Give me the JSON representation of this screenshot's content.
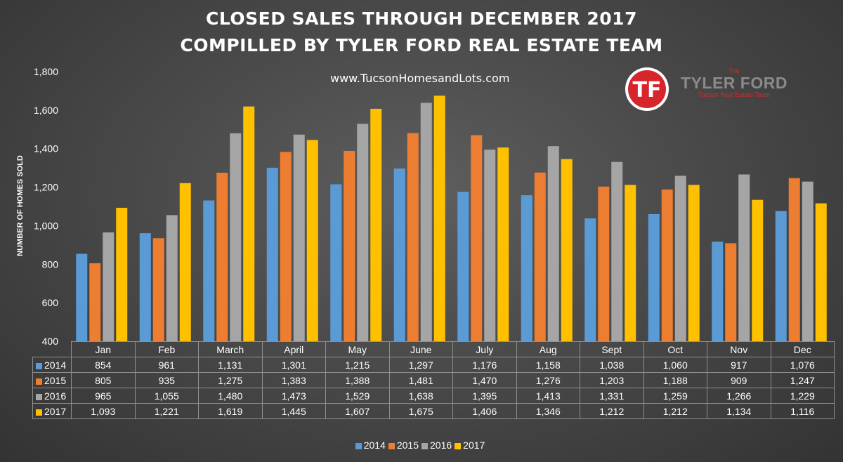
{
  "titles": {
    "line1": "CLOSED SALES THROUGH DECEMBER 2017",
    "line2": "COMPILLED BY TYLER FORD REAL ESTATE TEAM"
  },
  "url": "www.TucsonHomesandLots.com",
  "logo": {
    "monogram": "TF",
    "the": "The",
    "name": "TYLER FORD",
    "subtitle": "Tucson Real Estate Team"
  },
  "chart_data": {
    "type": "bar",
    "ylabel": "NUMBER OF HOMES SOLD",
    "ylim": [
      400,
      1800
    ],
    "yticks": [
      "400",
      "600",
      "800",
      "1,000",
      "1,200",
      "1,400",
      "1,600",
      "1,800"
    ],
    "categories": [
      "Jan",
      "Feb",
      "March",
      "April",
      "May",
      "June",
      "July",
      "Aug",
      "Sept",
      "Oct",
      "Nov",
      "Dec"
    ],
    "series": [
      {
        "name": "2014",
        "color": "#5b9bd5",
        "values": [
          854,
          961,
          1131,
          1301,
          1215,
          1297,
          1176,
          1158,
          1038,
          1060,
          917,
          1076
        ],
        "labels": [
          "854",
          "961",
          "1,131",
          "1,301",
          "1,215",
          "1,297",
          "1,176",
          "1,158",
          "1,038",
          "1,060",
          "917",
          "1,076"
        ]
      },
      {
        "name": "2015",
        "color": "#ed7d31",
        "values": [
          805,
          935,
          1275,
          1383,
          1388,
          1481,
          1470,
          1276,
          1203,
          1188,
          909,
          1247
        ],
        "labels": [
          "805",
          "935",
          "1,275",
          "1,383",
          "1,388",
          "1,481",
          "1,470",
          "1,276",
          "1,203",
          "1,188",
          "909",
          "1,247"
        ]
      },
      {
        "name": "2016",
        "color": "#a5a5a5",
        "values": [
          965,
          1055,
          1480,
          1473,
          1529,
          1638,
          1395,
          1413,
          1331,
          1259,
          1266,
          1229
        ],
        "labels": [
          "965",
          "1,055",
          "1,480",
          "1,473",
          "1,529",
          "1,638",
          "1,395",
          "1,413",
          "1,331",
          "1,259",
          "1,266",
          "1,229"
        ]
      },
      {
        "name": "2017",
        "color": "#ffc000",
        "values": [
          1093,
          1221,
          1619,
          1445,
          1607,
          1675,
          1406,
          1346,
          1212,
          1212,
          1134,
          1116
        ],
        "labels": [
          "1,093",
          "1,221",
          "1,619",
          "1,445",
          "1,607",
          "1,675",
          "1,406",
          "1,346",
          "1,212",
          "1,212",
          "1,134",
          "1,116"
        ]
      }
    ],
    "legend": "bottom",
    "grid": false,
    "data_table": true
  }
}
